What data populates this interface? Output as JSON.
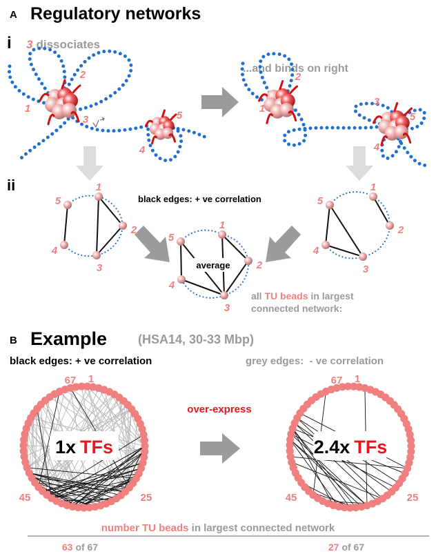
{
  "panel_a": {
    "letter": "A",
    "title": "Regulatory networks",
    "part_i": {
      "label": "i",
      "caption_left": {
        "bead": 3,
        "text": "dissociates"
      },
      "caption_right": "...and binds on right",
      "left_labels": [
        1,
        2,
        3,
        4,
        5
      ],
      "right_labels": [
        1,
        2,
        3,
        4,
        5
      ]
    },
    "part_ii": {
      "label": "ii",
      "legend": "black edges: + ve correlation",
      "networks": [
        {
          "labels": [
            1,
            2,
            3,
            4,
            5
          ]
        },
        {
          "labels": [
            1,
            2,
            3,
            4,
            5
          ],
          "center_label": "average"
        },
        {
          "labels": [
            1,
            2,
            3,
            4,
            5
          ]
        }
      ],
      "note": {
        "prefix": "all",
        "highlight": "TU beads",
        "suffix": "in largest",
        "line2": "connected network:"
      }
    }
  },
  "panel_b": {
    "letter": "B",
    "title": "Example",
    "subtitle": "(HSA14, 30-33 Mbp)",
    "legend_black": "black edges: + ve correlation",
    "legend_grey": "grey edges:  - ve correlation",
    "arrow_label": "over-express",
    "networks": [
      {
        "bead_labels": [
          67,
          1,
          45,
          25
        ],
        "fold": "1x",
        "factor": "TFs",
        "connected": 63,
        "of": "of 67"
      },
      {
        "bead_labels": [
          67,
          1,
          45,
          25
        ],
        "fold": "2.4x",
        "factor": "TFs",
        "connected": 27,
        "of": "of 67"
      }
    ],
    "footer": {
      "highlight": "number TU beads",
      "text": "in largest connected network"
    }
  }
}
